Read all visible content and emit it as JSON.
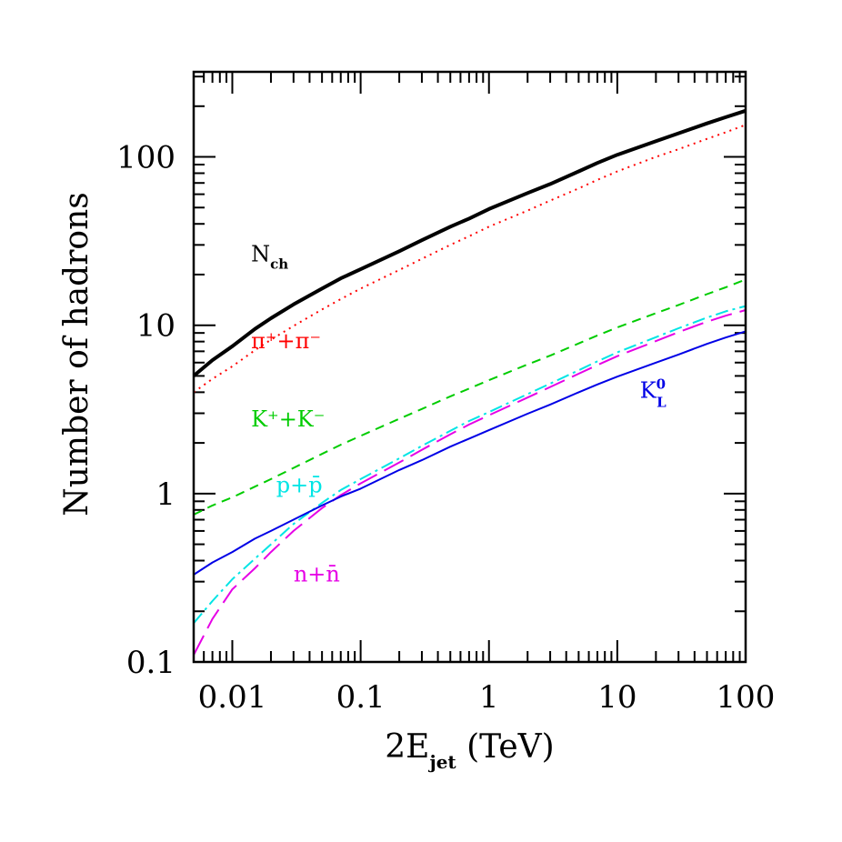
{
  "chart_data": {
    "type": "line",
    "title": "",
    "x_scale": "log",
    "y_scale": "log",
    "xlim": [
      0.005,
      100
    ],
    "ylim": [
      0.1,
      320
    ],
    "xlabel": {
      "main": "2E",
      "sub": "jet",
      "tail": " (TeV)"
    },
    "ylabel": "Number of hadrons",
    "x_ticks": [
      {
        "value": 0.01,
        "label": "0.01"
      },
      {
        "value": 0.1,
        "label": "0.1"
      },
      {
        "value": 1,
        "label": "1"
      },
      {
        "value": 10,
        "label": "10"
      },
      {
        "value": 100,
        "label": "100"
      }
    ],
    "y_ticks": [
      {
        "value": 0.1,
        "label": "0.1"
      },
      {
        "value": 1,
        "label": "1"
      },
      {
        "value": 10,
        "label": "10"
      },
      {
        "value": 100,
        "label": "100"
      }
    ],
    "grid": false,
    "series": [
      {
        "id": "nch",
        "label_main": "N",
        "label_sub": "ch",
        "label_sup": "",
        "color": "#000000",
        "style": "solid",
        "width": 4,
        "label_at": [
          0.014,
          24
        ],
        "x": [
          0.005,
          0.007,
          0.01,
          0.015,
          0.02,
          0.03,
          0.05,
          0.07,
          0.1,
          0.2,
          0.3,
          0.5,
          0.7,
          1,
          2,
          3,
          5,
          7,
          10,
          20,
          30,
          50,
          70,
          100
        ],
        "y": [
          5.0,
          6.2,
          7.5,
          9.5,
          11,
          13.3,
          16.5,
          19,
          21.5,
          27.5,
          32,
          38.5,
          43,
          49,
          61,
          69,
          82,
          92,
          103,
          124,
          138,
          158,
          172,
          188
        ]
      },
      {
        "id": "pions",
        "label_main": "π",
        "label_sub": "",
        "label_sup": "+",
        "label_full": "π⁺+π⁻",
        "color": "#ff0000",
        "style": "dotted",
        "width": 2,
        "label_at": [
          0.014,
          7.3
        ],
        "x": [
          0.005,
          0.007,
          0.01,
          0.015,
          0.02,
          0.03,
          0.05,
          0.07,
          0.1,
          0.2,
          0.3,
          0.5,
          0.7,
          1,
          2,
          3,
          5,
          7,
          10,
          20,
          30,
          50,
          70,
          100
        ],
        "y": [
          4.0,
          4.8,
          5.7,
          7.1,
          8.2,
          9.9,
          12.4,
          14.3,
          16.5,
          21.3,
          24.8,
          30,
          33.8,
          38.5,
          48,
          55,
          65,
          73,
          82,
          100,
          111,
          128,
          140,
          155
        ]
      },
      {
        "id": "kaons",
        "label_full": "K⁺+K⁻",
        "color": "#00cc00",
        "style": "dashed",
        "width": 2,
        "label_at": [
          0.014,
          2.5
        ],
        "x": [
          0.005,
          0.007,
          0.01,
          0.015,
          0.02,
          0.03,
          0.05,
          0.07,
          0.1,
          0.2,
          0.3,
          0.5,
          0.7,
          1,
          2,
          3,
          5,
          7,
          10,
          20,
          30,
          50,
          70,
          100
        ],
        "y": [
          0.75,
          0.85,
          0.95,
          1.1,
          1.22,
          1.42,
          1.72,
          1.95,
          2.2,
          2.78,
          3.18,
          3.78,
          4.2,
          4.72,
          5.85,
          6.6,
          7.8,
          8.7,
          9.7,
          11.8,
          13.2,
          15.3,
          16.8,
          18.7
        ]
      },
      {
        "id": "protons",
        "label_full": "p+p̄",
        "color": "#00e5e5",
        "style": "dash-dot",
        "width": 2,
        "label_at": [
          0.022,
          1.02
        ],
        "x": [
          0.005,
          0.007,
          0.01,
          0.015,
          0.02,
          0.03,
          0.05,
          0.07,
          0.1,
          0.2,
          0.3,
          0.5,
          0.7,
          1,
          2,
          3,
          5,
          7,
          10,
          20,
          30,
          50,
          70,
          100
        ],
        "y": [
          0.17,
          0.23,
          0.31,
          0.41,
          0.5,
          0.66,
          0.88,
          1.05,
          1.22,
          1.62,
          1.92,
          2.36,
          2.7,
          3.05,
          3.9,
          4.5,
          5.4,
          6.1,
          6.9,
          8.5,
          9.6,
          11.1,
          12.1,
          13.0
        ]
      },
      {
        "id": "neutrons",
        "label_full": "n+n̄",
        "color": "#e600e6",
        "style": "long-dash",
        "width": 2,
        "label_at": [
          0.03,
          0.3
        ],
        "x": [
          0.005,
          0.007,
          0.01,
          0.015,
          0.02,
          0.03,
          0.05,
          0.07,
          0.1,
          0.2,
          0.3,
          0.5,
          0.7,
          1,
          2,
          3,
          5,
          7,
          10,
          20,
          30,
          50,
          70,
          100
        ],
        "y": [
          0.11,
          0.18,
          0.27,
          0.36,
          0.45,
          0.6,
          0.82,
          0.98,
          1.15,
          1.53,
          1.82,
          2.25,
          2.57,
          2.92,
          3.72,
          4.3,
          5.15,
          5.8,
          6.55,
          8.05,
          9.1,
          10.5,
          11.4,
          12.3
        ]
      },
      {
        "id": "k0l",
        "label_main": "K",
        "label_sub": "L",
        "label_sup": "0",
        "color": "#0000e6",
        "style": "solid",
        "width": 2,
        "label_at": [
          15,
          3.7
        ],
        "x": [
          0.005,
          0.007,
          0.01,
          0.015,
          0.02,
          0.03,
          0.05,
          0.07,
          0.1,
          0.2,
          0.3,
          0.5,
          0.7,
          1,
          2,
          3,
          5,
          7,
          10,
          20,
          30,
          50,
          70,
          100
        ],
        "y": [
          0.33,
          0.39,
          0.45,
          0.54,
          0.6,
          0.7,
          0.85,
          0.96,
          1.07,
          1.38,
          1.58,
          1.9,
          2.12,
          2.38,
          2.98,
          3.38,
          4.0,
          4.45,
          4.95,
          6.0,
          6.7,
          7.75,
          8.45,
          9.2
        ]
      }
    ]
  }
}
